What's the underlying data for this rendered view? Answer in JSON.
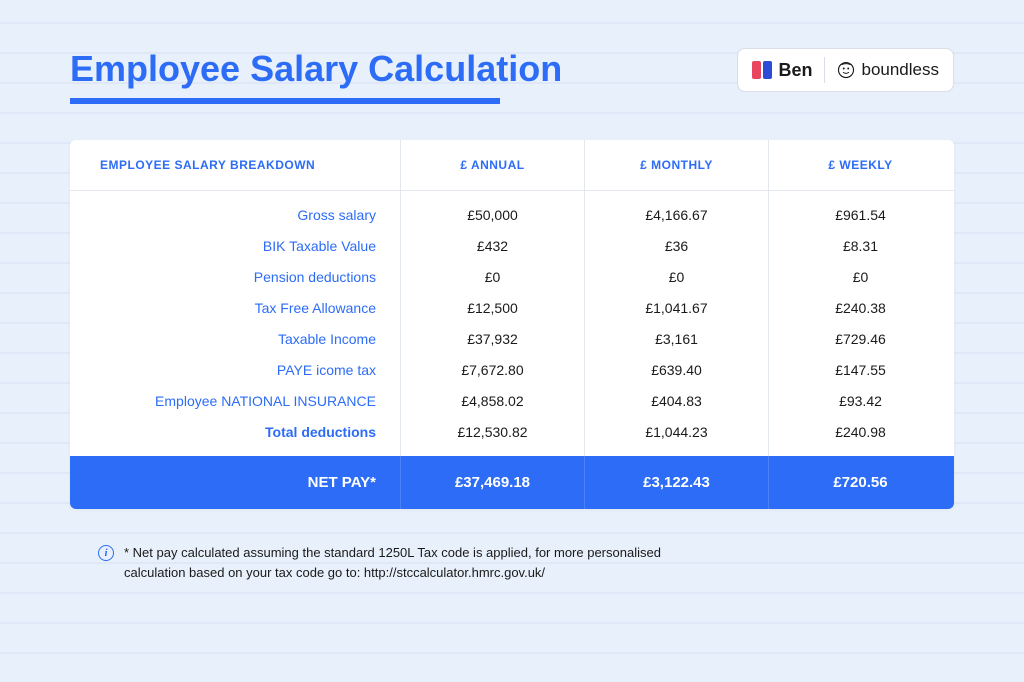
{
  "title": "Employee Salary Calculation",
  "logos": {
    "ben": {
      "label": "Ben",
      "mark_colors": [
        "#e84560",
        "#2c4bd6"
      ]
    },
    "boundless": {
      "label": "boundless"
    }
  },
  "colors": {
    "page_bg": "#e8f0fb",
    "accent": "#2c6cf6",
    "card_bg": "#ffffff",
    "border": "#e3e8ef",
    "text": "#1a1a1a"
  },
  "table": {
    "headers": {
      "label": "EMPLOYEE SALARY BREAKDOWN",
      "annual": "£ ANNUAL",
      "monthly": "£ MONTHLY",
      "weekly": "£ WEEKLY"
    },
    "rows": [
      {
        "label": "Gross salary",
        "annual": "£50,000",
        "monthly": "£4,166.67",
        "weekly": "£961.54"
      },
      {
        "label": "BIK Taxable Value",
        "annual": "£432",
        "monthly": "£36",
        "weekly": "£8.31"
      },
      {
        "label": "Pension deductions",
        "annual": "£0",
        "monthly": "£0",
        "weekly": "£0"
      },
      {
        "label": "Tax Free Allowance",
        "annual": "£12,500",
        "monthly": "£1,041.67",
        "weekly": "£240.38"
      },
      {
        "label": "Taxable Income",
        "annual": "£37,932",
        "monthly": "£3,161",
        "weekly": "£729.46"
      },
      {
        "label": "PAYE icome tax",
        "annual": "£7,672.80",
        "monthly": "£639.40",
        "weekly": "£147.55"
      },
      {
        "label": "Employee NATIONAL INSURANCE",
        "annual": "£4,858.02",
        "monthly": "£404.83",
        "weekly": "£93.42"
      },
      {
        "label": "Total deductions",
        "annual": "£12,530.82",
        "monthly": "£1,044.23",
        "weekly": "£240.98",
        "bold": true
      }
    ],
    "net": {
      "label": "NET PAY*",
      "annual": "£37,469.18",
      "monthly": "£3,122.43",
      "weekly": "£720.56"
    }
  },
  "footnote": "* Net pay calculated assuming the standard 1250L Tax code is applied, for more personalised calculation based on your tax code go to: http://stccalculator.hmrc.gov.uk/"
}
